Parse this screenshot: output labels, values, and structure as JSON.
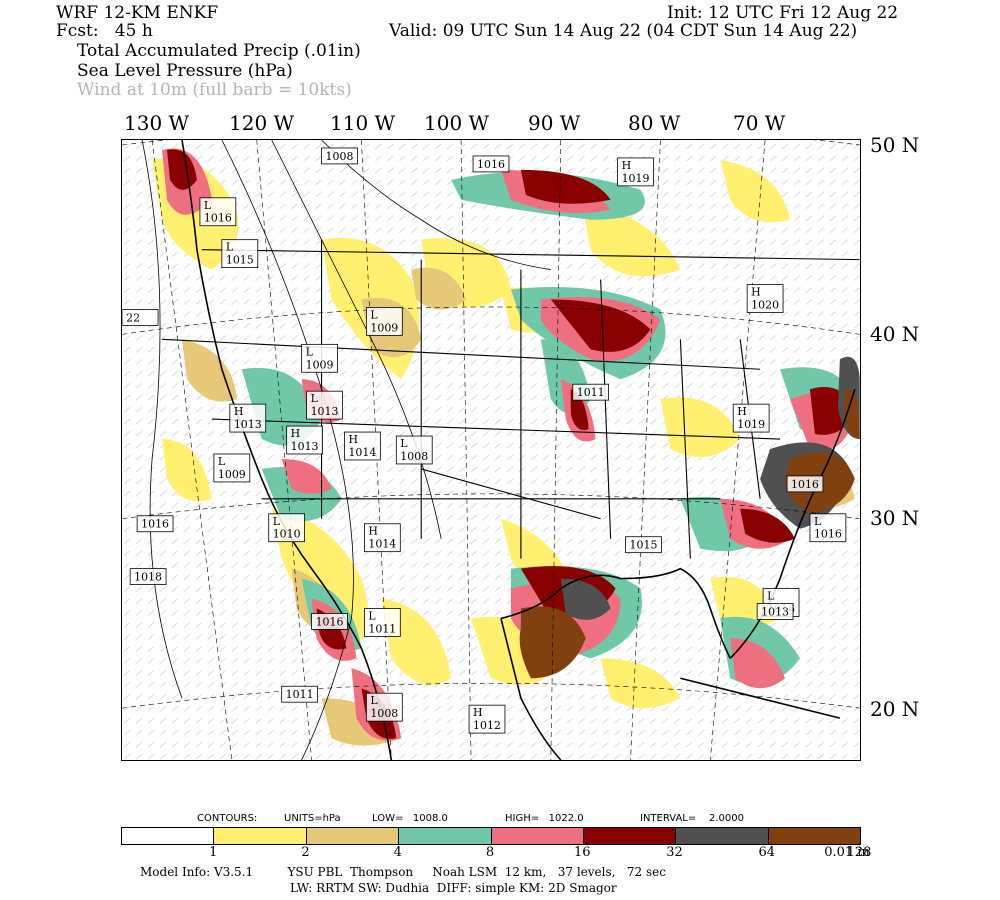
{
  "header": {
    "model": "WRF 12-KM ENKF",
    "fcst": "Fcst:   45 h",
    "init": "Init: 12 UTC Fri 12 Aug 22",
    "valid": "Valid: 09 UTC Sun 14 Aug 22 (04 CDT Sun 14 Aug 22)",
    "fields": [
      "Total Accumulated Precip (.01in)",
      "Sea Level Pressure (hPa)",
      "Wind at 10m (full barb = 10kts)"
    ]
  },
  "axes": {
    "longitudes": [
      "130 W",
      "120 W",
      "110 W",
      "100 W",
      "90 W",
      "80 W",
      "70 W"
    ],
    "latitudes": [
      "50 N",
      "40 N",
      "30 N",
      "20 N"
    ]
  },
  "pressure_centers": [
    {
      "type": "L",
      "value": "1016"
    },
    {
      "type": "L",
      "value": "1015"
    },
    {
      "type": "",
      "value": "1008"
    },
    {
      "type": "",
      "value": "1016"
    },
    {
      "type": "H",
      "value": "1019"
    },
    {
      "type": "",
      "value": "22"
    },
    {
      "type": "L",
      "value": "1009"
    },
    {
      "type": "L",
      "value": "1009"
    },
    {
      "type": "H",
      "value": "1020"
    },
    {
      "type": "L",
      "value": "1013"
    },
    {
      "type": "H",
      "value": "1013"
    },
    {
      "type": "H",
      "value": "1013"
    },
    {
      "type": "H",
      "value": "1014"
    },
    {
      "type": "L",
      "value": "1008"
    },
    {
      "type": "L",
      "value": "1009"
    },
    {
      "type": "",
      "value": "1011"
    },
    {
      "type": "H",
      "value": "1019"
    },
    {
      "type": "L",
      "value": "1010"
    },
    {
      "type": "",
      "value": "1016"
    },
    {
      "type": "H",
      "value": "1014"
    },
    {
      "type": "",
      "value": "1015"
    },
    {
      "type": "",
      "value": "1018"
    },
    {
      "type": "L",
      "value": "1016"
    },
    {
      "type": "",
      "value": "1016"
    },
    {
      "type": "L",
      "value": "1016"
    },
    {
      "type": "",
      "value": "1013"
    },
    {
      "type": "L",
      "value": "1011"
    },
    {
      "type": "",
      "value": "1016"
    },
    {
      "type": "",
      "value": "1011"
    },
    {
      "type": "L",
      "value": "1008"
    },
    {
      "type": "H",
      "value": "1012"
    }
  ],
  "contour_info": {
    "contours": "CONTOURS:",
    "units": "UNITS=hPa",
    "low": "LOW=   1008.0",
    "high": "HIGH=   1022.0",
    "interval": "INTERVAL=    2.0000"
  },
  "colorbar": {
    "colors": [
      "#ffffff",
      "#fff070",
      "#e6c878",
      "#70c8a8",
      "#ee7080",
      "#880000",
      "#505050",
      "#804010"
    ],
    "labels": [
      "1",
      "2",
      "4",
      "8",
      "16",
      "32",
      "64",
      "128",
      "0.01 in"
    ]
  },
  "footer": {
    "line1": "Model Info: V3.5.1         YSU PBL  Thompson     Noah LSM  12 km,   37 levels,   72 sec",
    "line2": "LW: RRTM SW: Dudhia  DIFF: simple KM: 2D Smagor"
  },
  "colors": {
    "water": "#f4f4f4",
    "yellow": "#fff070",
    "tan": "#e6c878",
    "green": "#70c8a8",
    "pink": "#ee7080",
    "maroon": "#880000",
    "gray": "#505050",
    "brown": "#804010"
  }
}
